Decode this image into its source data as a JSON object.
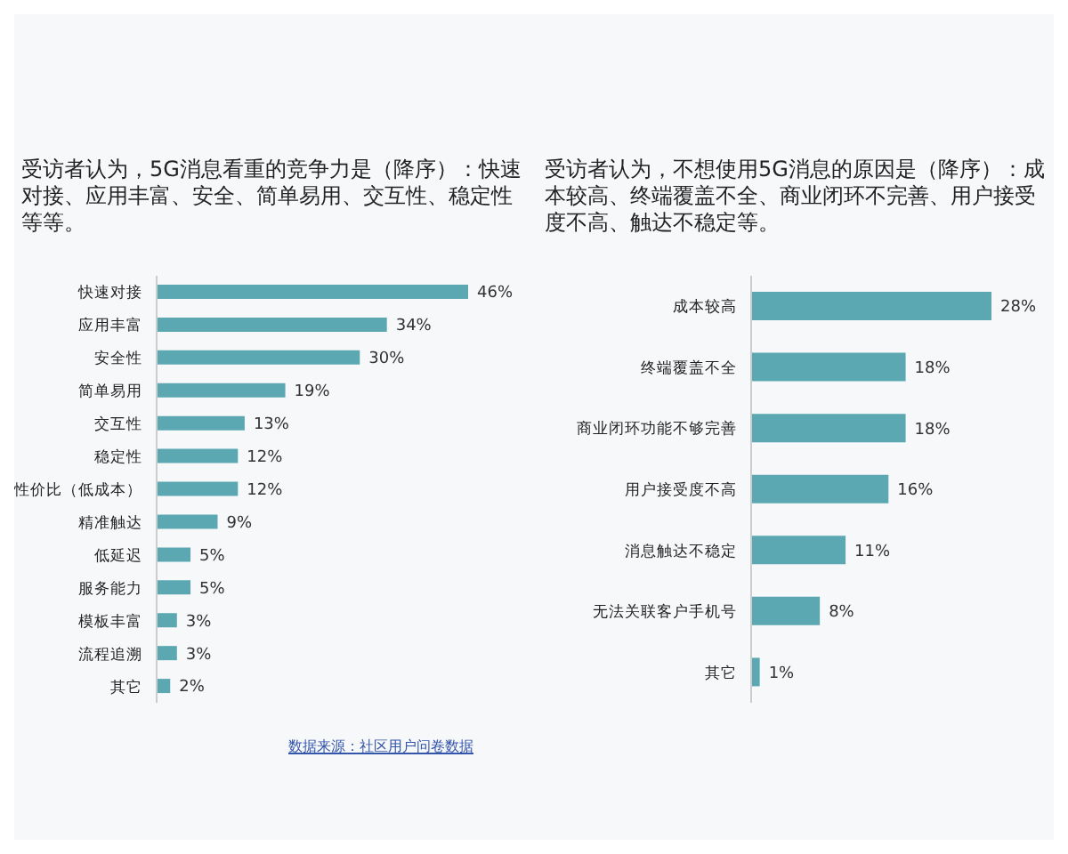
{
  "chart_data": [
    {
      "type": "bar",
      "orientation": "horizontal",
      "title": "受访者认为，5G消息看重的竞争力是（降序）：快速对接、应用丰富、安全、简单易用、交互性、稳定性等等。",
      "categories": [
        "快速对接",
        "应用丰富",
        "安全性",
        "简单易用",
        "交互性",
        "稳定性",
        "性价比（低成本）",
        "精准触达",
        "低延迟",
        "服务能力",
        "模板丰富",
        "流程追溯",
        "其它"
      ],
      "values": [
        46,
        34,
        30,
        19,
        13,
        12,
        12,
        9,
        5,
        5,
        3,
        3,
        2
      ],
      "value_labels": [
        "46%",
        "34%",
        "30%",
        "19%",
        "13%",
        "12%",
        "12%",
        "9%",
        "5%",
        "5%",
        "3%",
        "3%",
        "2%"
      ],
      "color": "#5ba8b3",
      "grid": false,
      "legend": false
    },
    {
      "type": "bar",
      "orientation": "horizontal",
      "title": "受访者认为，不想使用5G消息的原因是（降序）：成本较高、终端覆盖不全、商业闭环不完善、用户接受度不高、触达不稳定等。",
      "categories": [
        "成本较高",
        "终端覆盖不全",
        "商业闭环功能不够完善",
        "用户接受度不高",
        "消息触达不稳定",
        "无法关联客户手机号",
        "其它"
      ],
      "values": [
        28,
        18,
        18,
        16,
        11,
        8,
        1
      ],
      "value_labels": [
        "28%",
        "18%",
        "18%",
        "16%",
        "11%",
        "8%",
        "1%"
      ],
      "color": "#5ba8b3",
      "grid": false,
      "legend": false,
      "annotations": [
        "数据来源：社区用户问卷数据"
      ]
    }
  ]
}
